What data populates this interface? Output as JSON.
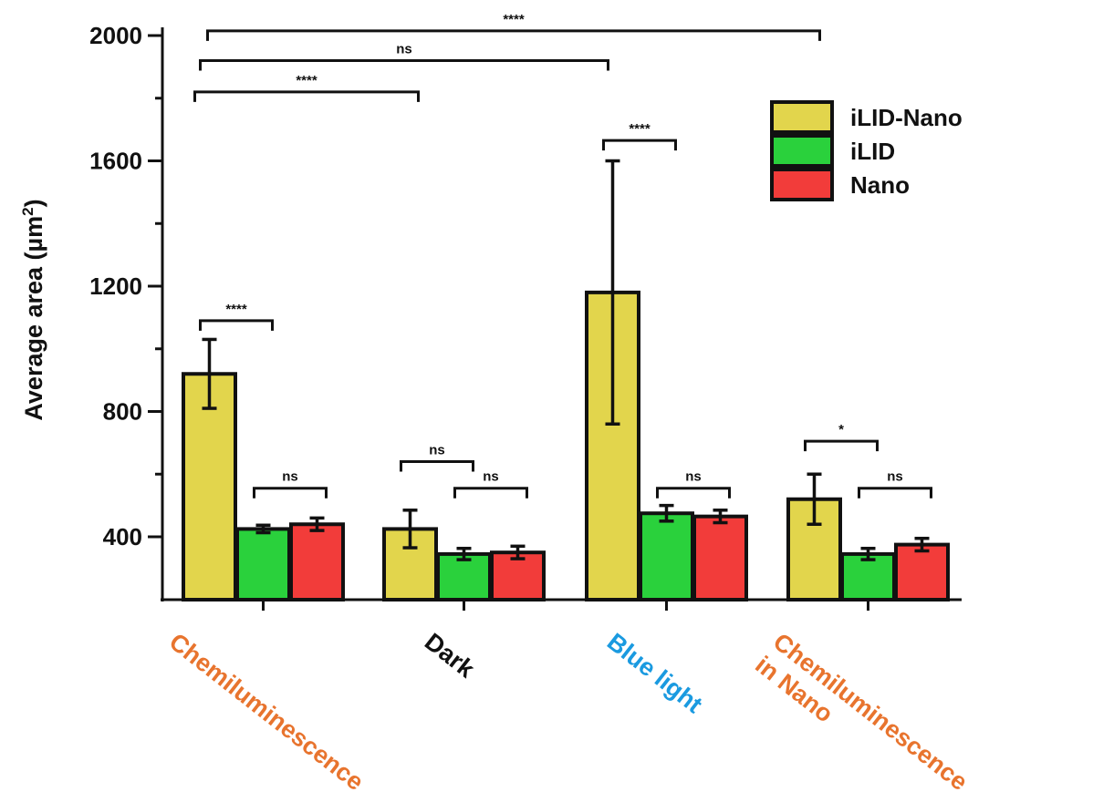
{
  "chart_data": {
    "type": "bar",
    "title": "",
    "xlabel": "",
    "ylabel": "Average area (µm²)",
    "ylim": [
      200,
      2000
    ],
    "yticks": [
      "400",
      "800",
      "1200",
      "1600",
      "2000"
    ],
    "grid": false,
    "legend_position": "top-right",
    "categories": [
      {
        "label_lines": [
          "Chemiluminescence"
        ],
        "color": "#e8742e"
      },
      {
        "label_lines": [
          "Dark"
        ],
        "color": "#111111"
      },
      {
        "label_lines": [
          "Blue light"
        ],
        "color": "#1a9ae0"
      },
      {
        "label_lines": [
          "Chemiluminescence",
          "in Nano"
        ],
        "color": "#e8742e"
      }
    ],
    "series": [
      {
        "name": "iLID-Nano",
        "color": "#e2d54c",
        "values": [
          920,
          425,
          1180,
          520
        ],
        "errors": [
          110,
          60,
          420,
          80
        ]
      },
      {
        "name": "iLID",
        "color": "#2ad13c",
        "values": [
          425,
          345,
          475,
          345
        ],
        "errors": [
          12,
          18,
          25,
          18
        ]
      },
      {
        "name": "Nano",
        "color": "#f23c3a",
        "values": [
          440,
          350,
          465,
          375
        ],
        "errors": [
          20,
          20,
          20,
          20
        ]
      }
    ],
    "comparisons": [
      {
        "label": "****",
        "group": 0,
        "from_series": 0,
        "to_series": 1,
        "level": 1090
      },
      {
        "label": "ns",
        "group": 0,
        "from_series": 1,
        "to_series": 2,
        "level": 555
      },
      {
        "label": "ns",
        "group": 1,
        "from_series": 0,
        "to_series": 1,
        "level": 640
      },
      {
        "label": "ns",
        "group": 1,
        "from_series": 1,
        "to_series": 2,
        "level": 555
      },
      {
        "label": "****",
        "group": 2,
        "from_series": 0,
        "to_series": 1,
        "level": 1665
      },
      {
        "label": "ns",
        "group": 2,
        "from_series": 1,
        "to_series": 2,
        "level": 555
      },
      {
        "label": "*",
        "group": 3,
        "from_series": 0,
        "to_series": 1,
        "level": 705
      },
      {
        "label": "ns",
        "group": 3,
        "from_series": 1,
        "to_series": 2,
        "level": 555
      },
      {
        "label": "****",
        "from_group": 0,
        "to_group": 1,
        "level": 1820
      },
      {
        "label": "ns",
        "from_group": 0,
        "to_group": 2,
        "level": 1920
      },
      {
        "label": "****",
        "from_group": 0,
        "to_group": 3,
        "level": 2015
      }
    ]
  }
}
